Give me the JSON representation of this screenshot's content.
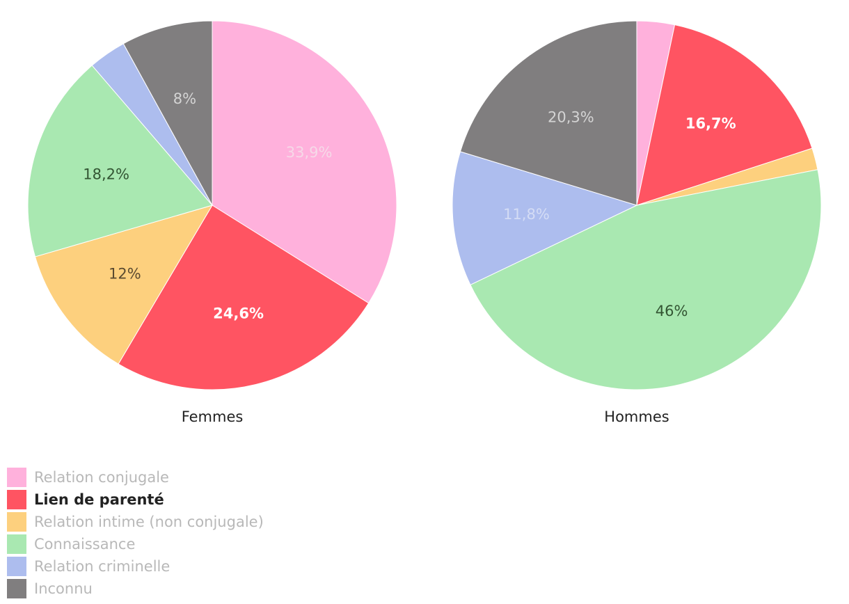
{
  "chart_data": [
    {
      "type": "pie",
      "title": "Femmes",
      "series": [
        {
          "name": "Relation conjugale",
          "value": 33.9,
          "label": "33,9%"
        },
        {
          "name": "Lien de parenté",
          "value": 24.6,
          "label": "24,6%"
        },
        {
          "name": "Relation intime (non conjugale)",
          "value": 12,
          "label": "12%"
        },
        {
          "name": "Connaissance",
          "value": 18.2,
          "label": "18,2%"
        },
        {
          "name": "Relation criminelle",
          "value": 3.3,
          "label": ""
        },
        {
          "name": "Inconnu",
          "value": 8,
          "label": "8%"
        }
      ]
    },
    {
      "type": "pie",
      "title": "Hommes",
      "series": [
        {
          "name": "Relation conjugale",
          "value": 3.3,
          "label": ""
        },
        {
          "name": "Lien de parenté",
          "value": 16.7,
          "label": "16,7%"
        },
        {
          "name": "Relation intime (non conjugale)",
          "value": 1.9,
          "label": ""
        },
        {
          "name": "Connaissance",
          "value": 46,
          "label": "46%"
        },
        {
          "name": "Relation criminelle",
          "value": 11.8,
          "label": "11,8%"
        },
        {
          "name": "Inconnu",
          "value": 20.3,
          "label": "20,3%"
        }
      ]
    }
  ],
  "legend": {
    "placement": "bottom-left",
    "items": [
      {
        "label": "Relation conjugale",
        "color": "#ffb1dc"
      },
      {
        "label": "Lien de parenté",
        "color": "#ff5462",
        "highlight": true
      },
      {
        "label": "Relation intime (non conjugale)",
        "color": "#fdd07e"
      },
      {
        "label": "Connaissance",
        "color": "#a9e8b1"
      },
      {
        "label": "Relation criminelle",
        "color": "#adbdee"
      },
      {
        "label": "Inconnu",
        "color": "#807e7f"
      }
    ]
  },
  "label_colors": {
    "Relation conjugale": "#f6d9e8",
    "Lien de parenté": "#ffffff",
    "Relation intime (non conjugale)": "#5a4a30",
    "Connaissance": "#335533",
    "Relation criminelle": "#d4dcf5",
    "Inconnu": "#d4d4d4"
  }
}
